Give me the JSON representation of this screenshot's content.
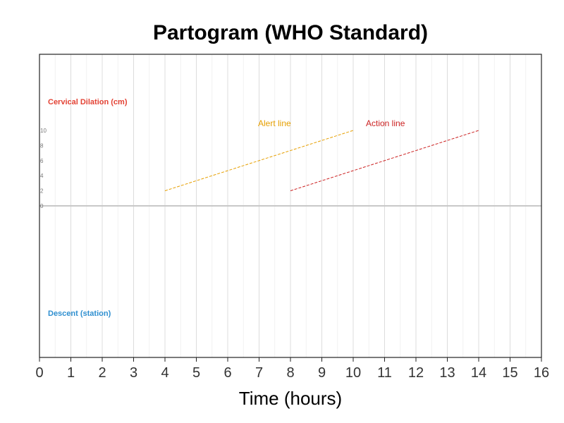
{
  "chart_data": {
    "type": "line",
    "title": "Partogram (WHO Standard)",
    "xlabel": "Time (hours)",
    "ylabel": "",
    "xlim": [
      0,
      16
    ],
    "x_ticks": [
      0,
      1,
      2,
      3,
      4,
      5,
      6,
      7,
      8,
      9,
      10,
      11,
      12,
      13,
      14,
      15,
      16
    ],
    "x_minor_step": 0.5,
    "dilation_ticks": [
      0,
      2,
      4,
      6,
      8,
      10
    ],
    "grid": true,
    "panel_labels": {
      "dilation": "Cervical Dilation (cm)",
      "descent": "Descent (station)"
    },
    "series": [
      {
        "name": "Alert line",
        "x": [
          4,
          10
        ],
        "y": [
          2,
          10
        ],
        "color": "#e69f00",
        "style": "dashed"
      },
      {
        "name": "Action line",
        "x": [
          8,
          14
        ],
        "y": [
          2,
          10
        ],
        "color": "#cc2222",
        "style": "dashed"
      }
    ],
    "colors": {
      "dilation_label": "#e34234",
      "descent_label": "#2f8fd0",
      "alert": "#e69f00",
      "action": "#cc2222"
    }
  }
}
